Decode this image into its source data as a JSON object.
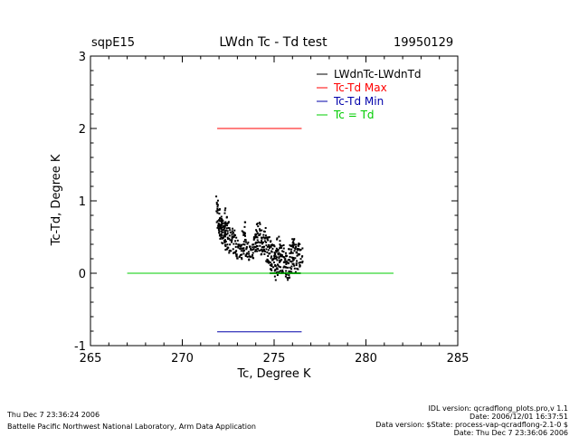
{
  "header": {
    "site": "sqpE15",
    "title": "LWdn Tc - Td test",
    "date": "19950129"
  },
  "chart_data": {
    "type": "scatter",
    "xlabel": "Tc, Degree K",
    "ylabel": "Tc-Td, Degree K",
    "xlim": [
      265,
      285
    ],
    "ylim": [
      -1,
      3
    ],
    "x_ticks": [
      "265",
      "270",
      "275",
      "280",
      "285"
    ],
    "y_ticks": [
      "-1",
      "0",
      "1",
      "2",
      "3"
    ],
    "grid": false,
    "legend_position": "top-right",
    "legend": [
      {
        "label": "LWdnTc-LWdnTd",
        "color": "#000000"
      },
      {
        "label": "Tc-Td Max",
        "color": "#ff0000"
      },
      {
        "label": "Tc-Td Min",
        "color": "#0000aa"
      },
      {
        "label": "Tc = Td",
        "color": "#00cc00"
      }
    ],
    "lines": [
      {
        "label": "Tc-Td Max",
        "color": "#ff0000",
        "x": [
          271.9,
          276.5
        ],
        "y": [
          2.0,
          2.0
        ]
      },
      {
        "label": "Tc-Td Min",
        "color": "#0000aa",
        "x": [
          271.9,
          276.5
        ],
        "y": [
          -0.81,
          -0.81
        ]
      },
      {
        "label": "Tc = Td",
        "color": "#00cc00",
        "x": [
          267.0,
          281.5
        ],
        "y": [
          0.0,
          0.0
        ]
      }
    ],
    "series": [
      {
        "label": "LWdnTc-LWdnTd",
        "color": "#000000",
        "x": [
          271.9,
          272.0,
          272.0,
          272.1,
          272.1,
          272.2,
          272.2,
          272.3,
          272.3,
          272.4,
          272.5,
          272.6,
          272.7,
          272.8,
          272.9,
          273.0,
          273.1,
          273.2,
          273.3,
          273.4,
          273.5,
          273.6,
          273.7,
          273.8,
          273.9,
          274.0,
          274.1,
          274.2,
          274.3,
          274.4,
          274.5,
          274.6,
          274.7,
          274.8,
          274.9,
          275.0,
          275.1,
          275.2,
          275.3,
          275.4,
          275.5,
          275.6,
          275.7,
          275.8,
          275.9,
          276.0,
          276.1,
          276.2,
          276.3,
          276.4,
          276.5
        ],
        "y_high": [
          1.1,
          0.92,
          0.85,
          0.82,
          0.78,
          0.72,
          0.75,
          0.7,
          0.9,
          0.82,
          0.72,
          0.65,
          0.62,
          0.6,
          0.55,
          0.48,
          0.45,
          0.5,
          0.6,
          0.72,
          0.55,
          0.45,
          0.4,
          0.4,
          0.55,
          0.7,
          0.75,
          0.72,
          0.6,
          0.55,
          0.65,
          0.6,
          0.5,
          0.52,
          0.45,
          0.4,
          0.38,
          0.5,
          0.55,
          0.45,
          0.4,
          0.35,
          0.3,
          0.35,
          0.45,
          0.5,
          0.48,
          0.4,
          0.45,
          0.42,
          0.35
        ],
        "y_low": [
          0.6,
          0.55,
          0.5,
          0.5,
          0.45,
          0.42,
          0.4,
          0.38,
          0.35,
          0.32,
          0.3,
          0.28,
          0.3,
          0.25,
          0.22,
          0.2,
          0.2,
          0.18,
          0.25,
          0.3,
          0.22,
          0.18,
          0.15,
          0.18,
          0.2,
          0.25,
          0.28,
          0.3,
          0.25,
          0.22,
          0.2,
          0.15,
          0.1,
          0.05,
          0.0,
          -0.05,
          -0.1,
          -0.05,
          0.0,
          0.02,
          0.0,
          -0.05,
          -0.1,
          -0.08,
          0.0,
          0.05,
          0.02,
          0.0,
          0.05,
          0.08,
          0.1
        ]
      }
    ]
  },
  "footer": {
    "timestamp": "Thu Dec  7 23:36:24 2006",
    "org": "Battelle Pacific Northwest National Laboratory, Arm Data Application",
    "right_lines": [
      "IDL version: qcradflong_plots.pro,v 1.1",
      "Date: 2006/12/01 16:37:51",
      "Data version: $State: process-vap-qcradflong-2.1-0 $",
      "Date: Thu Dec  7 23:36:06 2006"
    ]
  }
}
